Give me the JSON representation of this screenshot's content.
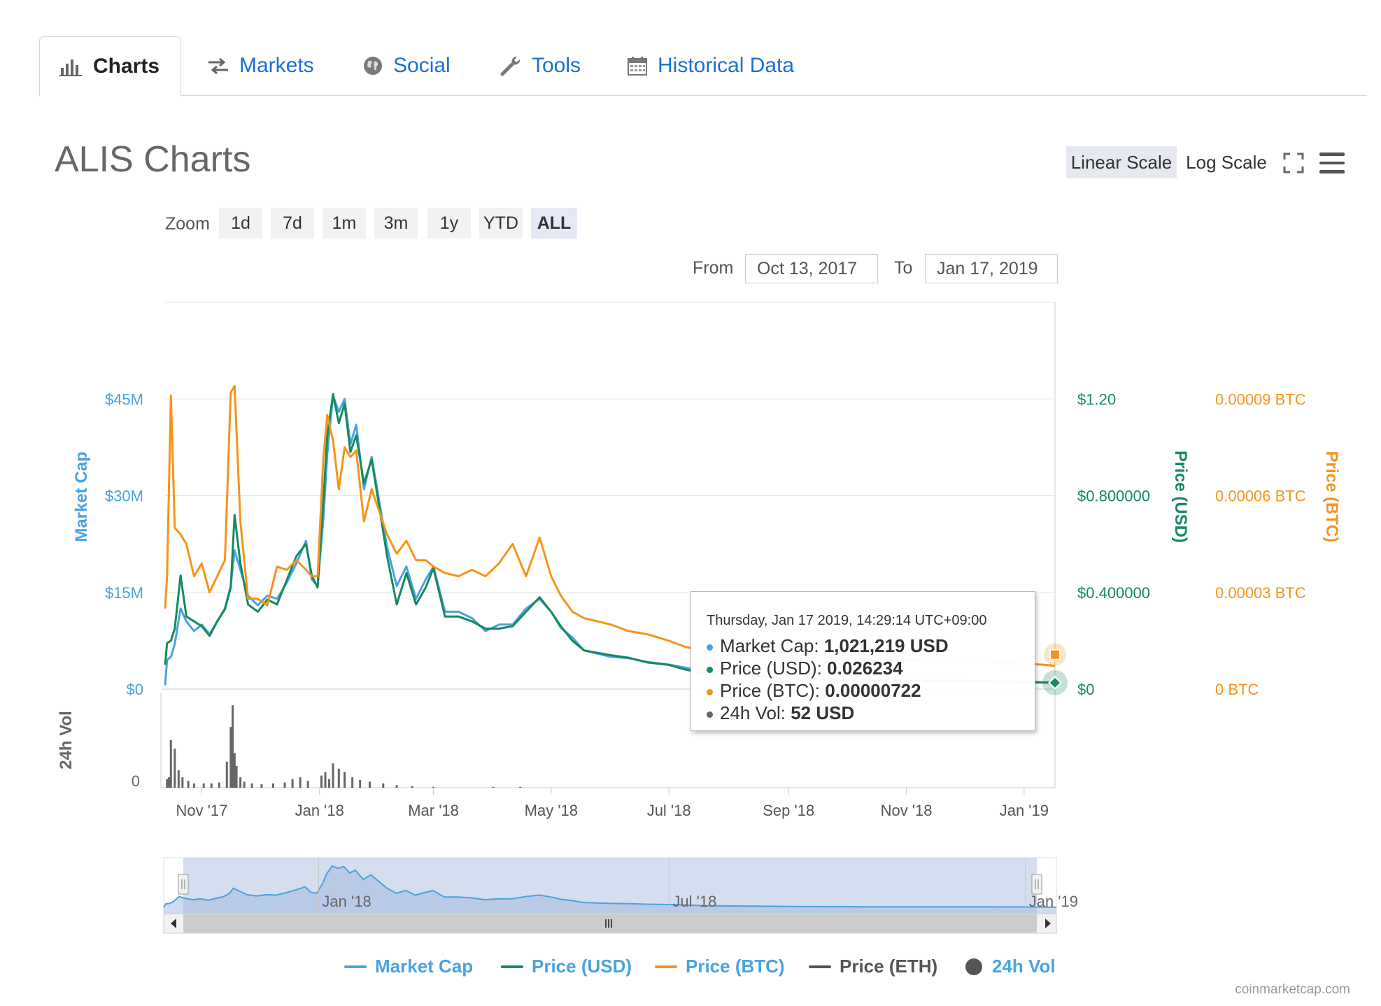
{
  "tabs": [
    {
      "label": "Charts",
      "icon": "bar-chart-icon",
      "active": true
    },
    {
      "label": "Markets",
      "icon": "exchange-arrows-icon",
      "active": false
    },
    {
      "label": "Social",
      "icon": "globe-icon",
      "active": false
    },
    {
      "label": "Tools",
      "icon": "wrench-icon",
      "active": false
    },
    {
      "label": "Historical Data",
      "icon": "calendar-icon",
      "active": false
    }
  ],
  "page": {
    "title": "ALIS Charts"
  },
  "scale": {
    "linear": "Linear Scale",
    "log": "Log Scale",
    "selected": "linear"
  },
  "zoom": {
    "label": "Zoom",
    "buttons": [
      "1d",
      "7d",
      "1m",
      "3m",
      "1y",
      "YTD",
      "ALL"
    ],
    "selected": "ALL"
  },
  "range": {
    "from_label": "From",
    "from": "Oct 13, 2017",
    "to_label": "To",
    "to": "Jan 17, 2019"
  },
  "tooltip": {
    "title": "Thursday, Jan 17 2019, 14:29:14 UTC+09:00",
    "rows": [
      {
        "label": "Market Cap:",
        "value": "1,021,219 USD",
        "color": "#4aa3df"
      },
      {
        "label": "Price (USD):",
        "value": "0.026234",
        "color": "#168a5e"
      },
      {
        "label": "Price (BTC):",
        "value": "0.00000722",
        "color": "#f7931a"
      },
      {
        "label": "24h Vol:",
        "value": "52 USD",
        "color": "#666666"
      }
    ]
  },
  "legend": [
    {
      "label": "Market Cap",
      "color": "#4aa3df",
      "shape": "line"
    },
    {
      "label": "Price (USD)",
      "color": "#168a5e",
      "shape": "line"
    },
    {
      "label": "Price (BTC)",
      "color": "#f7931a",
      "shape": "line"
    },
    {
      "label": "Price (ETH)",
      "color": "#555555",
      "shape": "line",
      "text_color": "#555555"
    },
    {
      "label": "24h Vol",
      "color": "#555555",
      "shape": "circle"
    }
  ],
  "credits": "coinmarketcap.com",
  "colors": {
    "market_cap": "#4aa3df",
    "price_usd": "#168a5e",
    "price_btc": "#f7931a",
    "volume": "#555555",
    "navigator_fill": "#c6d3ea"
  },
  "chart_data": {
    "type": "line",
    "title": "",
    "x_tick_labels": [
      "Nov '17",
      "Jan '18",
      "Mar '18",
      "May '18",
      "Jul '18",
      "Sep '18",
      "Nov '18",
      "Jan '19"
    ],
    "x_tick_dates": [
      "2017-11-01",
      "2018-01-01",
      "2018-03-01",
      "2018-05-01",
      "2018-07-01",
      "2018-09-01",
      "2018-11-01",
      "2019-01-01"
    ],
    "x_range": [
      "2017-10-13",
      "2019-01-17"
    ],
    "axes": {
      "market_cap": {
        "title": "Market Cap",
        "ticks": [
          "$0",
          "$15M",
          "$30M",
          "$45M"
        ],
        "range": [
          0,
          60000000
        ]
      },
      "price_usd": {
        "title": "Price (USD)",
        "ticks": [
          "$0",
          "$0.400000",
          "$0.800000",
          "$1.20"
        ],
        "range": [
          0,
          1.6
        ]
      },
      "price_btc": {
        "title": "Price (BTC)",
        "ticks": [
          "0 BTC",
          "0.00003 BTC",
          "0.00006 BTC",
          "0.00009 BTC"
        ],
        "range": [
          0,
          0.00012
        ]
      },
      "volume": {
        "title": "24h Vol",
        "ticks": [
          "0"
        ]
      }
    },
    "series": [
      {
        "name": "Market Cap",
        "x": [
          "2017-10-13",
          "2017-10-14",
          "2017-10-16",
          "2017-10-18",
          "2017-10-21",
          "2017-10-24",
          "2017-10-28",
          "2017-11-01",
          "2017-11-05",
          "2017-11-09",
          "2017-11-13",
          "2017-11-16",
          "2017-11-18",
          "2017-11-21",
          "2017-11-25",
          "2017-11-30",
          "2017-12-05",
          "2017-12-10",
          "2017-12-15",
          "2017-12-20",
          "2017-12-25",
          "2017-12-28",
          "2017-12-31",
          "2018-01-03",
          "2018-01-05",
          "2018-01-08",
          "2018-01-11",
          "2018-01-14",
          "2018-01-17",
          "2018-01-20",
          "2018-01-24",
          "2018-01-28",
          "2018-02-01",
          "2018-02-05",
          "2018-02-10",
          "2018-02-15",
          "2018-02-20",
          "2018-02-25",
          "2018-03-01",
          "2018-03-07",
          "2018-03-14",
          "2018-03-21",
          "2018-03-28",
          "2018-04-04",
          "2018-04-11",
          "2018-04-18",
          "2018-04-25",
          "2018-05-01",
          "2018-05-06",
          "2018-05-12",
          "2018-05-18",
          "2018-05-25",
          "2018-06-01",
          "2018-06-10",
          "2018-06-20",
          "2018-07-01",
          "2018-07-10",
          "2018-07-20",
          "2018-08-01",
          "2018-08-15",
          "2018-09-01",
          "2018-09-20",
          "2018-10-10",
          "2018-11-01",
          "2018-11-20",
          "2018-12-10",
          "2018-12-25",
          "2019-01-05",
          "2019-01-12",
          "2019-01-17"
        ],
        "values": [
          600000,
          4500000,
          5000000,
          7000000,
          12500000,
          10500000,
          9000000,
          10000000,
          8500000,
          10500000,
          12500000,
          16000000,
          21500000,
          18500000,
          14500000,
          13000000,
          14500000,
          14000000,
          16500000,
          19500000,
          23000000,
          17000000,
          16000000,
          26500000,
          36500000,
          45500000,
          43000000,
          45000000,
          38000000,
          41000000,
          31000000,
          36000000,
          29000000,
          22000000,
          16000000,
          19000000,
          14000000,
          17000000,
          19000000,
          12000000,
          12000000,
          11000000,
          9000000,
          10000000,
          10000000,
          12500000,
          14000000,
          12000000,
          9500000,
          8000000,
          6000000,
          5500000,
          5000000,
          4800000,
          4200000,
          3800000,
          3300000,
          2500000,
          2300000,
          2100000,
          1700000,
          1500000,
          1400000,
          1350000,
          1300000,
          1250000,
          1200000,
          1100000,
          1050000,
          1021219
        ]
      },
      {
        "name": "Price (USD)",
        "x": [
          "2017-10-13",
          "2017-10-14",
          "2017-10-16",
          "2017-10-18",
          "2017-10-21",
          "2017-10-24",
          "2017-10-28",
          "2017-11-01",
          "2017-11-05",
          "2017-11-09",
          "2017-11-13",
          "2017-11-16",
          "2017-11-18",
          "2017-11-21",
          "2017-11-25",
          "2017-11-30",
          "2017-12-05",
          "2017-12-10",
          "2017-12-15",
          "2017-12-20",
          "2017-12-25",
          "2017-12-28",
          "2017-12-31",
          "2018-01-03",
          "2018-01-05",
          "2018-01-08",
          "2018-01-11",
          "2018-01-14",
          "2018-01-17",
          "2018-01-20",
          "2018-01-24",
          "2018-01-28",
          "2018-02-01",
          "2018-02-05",
          "2018-02-10",
          "2018-02-15",
          "2018-02-20",
          "2018-02-25",
          "2018-03-01",
          "2018-03-07",
          "2018-03-14",
          "2018-03-21",
          "2018-03-28",
          "2018-04-04",
          "2018-04-11",
          "2018-04-18",
          "2018-04-25",
          "2018-05-01",
          "2018-05-06",
          "2018-05-12",
          "2018-05-18",
          "2018-05-25",
          "2018-06-01",
          "2018-06-10",
          "2018-06-20",
          "2018-07-01",
          "2018-07-10",
          "2018-07-20",
          "2018-08-01",
          "2018-08-15",
          "2018-09-01",
          "2018-09-20",
          "2018-10-10",
          "2018-11-01",
          "2018-11-20",
          "2018-12-10",
          "2018-12-25",
          "2019-01-05",
          "2019-01-12",
          "2019-01-17"
        ],
        "values": [
          0.1,
          0.19,
          0.2,
          0.25,
          0.47,
          0.3,
          0.28,
          0.26,
          0.22,
          0.28,
          0.33,
          0.42,
          0.72,
          0.52,
          0.35,
          0.32,
          0.37,
          0.35,
          0.45,
          0.55,
          0.6,
          0.47,
          0.42,
          0.78,
          1.05,
          1.22,
          1.1,
          1.18,
          0.98,
          1.05,
          0.85,
          0.95,
          0.75,
          0.55,
          0.35,
          0.48,
          0.35,
          0.42,
          0.5,
          0.3,
          0.3,
          0.28,
          0.25,
          0.25,
          0.26,
          0.32,
          0.38,
          0.32,
          0.26,
          0.2,
          0.16,
          0.15,
          0.14,
          0.13,
          0.11,
          0.1,
          0.08,
          0.065,
          0.06,
          0.055,
          0.045,
          0.04,
          0.038,
          0.036,
          0.034,
          0.032,
          0.03,
          0.028,
          0.027,
          0.026234
        ]
      },
      {
        "name": "Price (BTC)",
        "x": [
          "2017-10-13",
          "2017-10-14",
          "2017-10-16",
          "2017-10-18",
          "2017-10-21",
          "2017-10-24",
          "2017-10-28",
          "2017-11-01",
          "2017-11-05",
          "2017-11-09",
          "2017-11-13",
          "2017-11-16",
          "2017-11-18",
          "2017-11-21",
          "2017-11-25",
          "2017-11-30",
          "2017-12-05",
          "2017-12-10",
          "2017-12-15",
          "2017-12-20",
          "2017-12-25",
          "2017-12-28",
          "2017-12-31",
          "2018-01-03",
          "2018-01-05",
          "2018-01-08",
          "2018-01-11",
          "2018-01-14",
          "2018-01-17",
          "2018-01-20",
          "2018-01-24",
          "2018-01-28",
          "2018-02-01",
          "2018-02-05",
          "2018-02-10",
          "2018-02-15",
          "2018-02-20",
          "2018-02-25",
          "2018-03-01",
          "2018-03-07",
          "2018-03-14",
          "2018-03-21",
          "2018-03-28",
          "2018-04-04",
          "2018-04-11",
          "2018-04-18",
          "2018-04-25",
          "2018-05-01",
          "2018-05-06",
          "2018-05-12",
          "2018-05-18",
          "2018-05-25",
          "2018-06-01",
          "2018-06-10",
          "2018-06-20",
          "2018-07-01",
          "2018-07-10",
          "2018-07-20",
          "2018-08-01",
          "2018-08-15",
          "2018-09-01",
          "2018-09-20",
          "2018-10-10",
          "2018-11-01",
          "2018-11-20",
          "2018-12-10",
          "2018-12-25",
          "2019-01-05",
          "2019-01-12",
          "2019-01-17"
        ],
        "values": [
          2.5e-05,
          3.5e-05,
          9.1e-05,
          5e-05,
          4.8e-05,
          4.5e-05,
          3.5e-05,
          3.9e-05,
          3e-05,
          3.5e-05,
          4e-05,
          9.2e-05,
          9.4e-05,
          5.2e-05,
          2.8e-05,
          2.8e-05,
          2.6e-05,
          3.8e-05,
          3.7e-05,
          4e-05,
          3.7e-05,
          3.5e-05,
          3.5e-05,
          7.2e-05,
          8.5e-05,
          7.7e-05,
          6.2e-05,
          7.5e-05,
          7.2e-05,
          7.4e-05,
          5.2e-05,
          6.2e-05,
          5.5e-05,
          4.8e-05,
          4.2e-05,
          4.6e-05,
          4e-05,
          4e-05,
          3.8e-05,
          3.6e-05,
          3.5e-05,
          3.7e-05,
          3.5e-05,
          3.9e-05,
          4.5e-05,
          3.5e-05,
          4.7e-05,
          3.5e-05,
          2.9e-05,
          2.4e-05,
          2.2e-05,
          2.1e-05,
          2e-05,
          1.8e-05,
          1.7e-05,
          1.5e-05,
          1.3e-05,
          1.2e-05,
          1.1e-05,
          1.05e-05,
          1e-05,
          9.5e-06,
          9.2e-06,
          9e-06,
          8.8e-06,
          8.5e-06,
          8e-06,
          7.8e-06,
          7.5e-06,
          7.22e-06
        ]
      }
    ],
    "volume_bars": {
      "x": [
        "2017-10-14",
        "2017-10-15",
        "2017-10-16",
        "2017-10-18",
        "2017-10-20",
        "2017-10-22",
        "2017-10-25",
        "2017-10-28",
        "2017-11-02",
        "2017-11-06",
        "2017-11-10",
        "2017-11-14",
        "2017-11-16",
        "2017-11-17",
        "2017-11-18",
        "2017-11-19",
        "2017-11-21",
        "2017-11-23",
        "2017-11-27",
        "2017-12-02",
        "2017-12-08",
        "2017-12-14",
        "2017-12-18",
        "2017-12-22",
        "2017-12-26",
        "2018-01-02",
        "2018-01-04",
        "2018-01-06",
        "2018-01-08",
        "2018-01-11",
        "2018-01-14",
        "2018-01-18",
        "2018-01-22",
        "2018-01-27",
        "2018-02-03",
        "2018-02-10",
        "2018-02-18",
        "2018-03-01",
        "2018-04-01",
        "2018-04-15"
      ],
      "values": [
        0.1,
        0.12,
        0.55,
        0.45,
        0.2,
        0.12,
        0.08,
        0.05,
        0.05,
        0.05,
        0.06,
        0.3,
        0.7,
        0.95,
        0.4,
        0.25,
        0.12,
        0.07,
        0.05,
        0.04,
        0.05,
        0.06,
        0.1,
        0.12,
        0.08,
        0.14,
        0.18,
        0.1,
        0.28,
        0.22,
        0.18,
        0.12,
        0.09,
        0.07,
        0.05,
        0.03,
        0.02,
        0.01,
        0.01,
        0.01
      ]
    },
    "navigator": {
      "labels": [
        "Jan '18",
        "Jul '18",
        "Jan '19"
      ]
    },
    "grid": true
  }
}
